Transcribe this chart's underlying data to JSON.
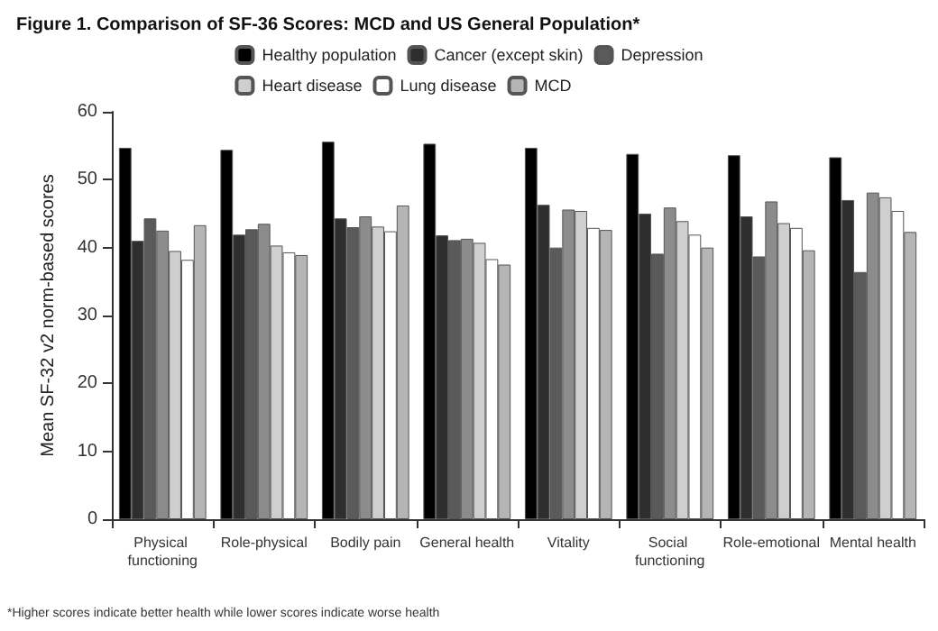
{
  "chart_data": {
    "type": "bar",
    "title": "Figure 1. Comparison of SF-36 Scores: MCD and US General Population*",
    "ylabel": "Mean SF-32 v2 norm-based scores",
    "annotations": [
      "*Higher scores indicate better health while lower scores indicate worse health"
    ],
    "categories": [
      "Physical functioning",
      "Role-physical",
      "Bodily pain",
      "General health",
      "Vitality",
      "Social functioning",
      "Role-emotional",
      "Mental health"
    ],
    "series": [
      {
        "name": "Healthy population",
        "color": "#000000",
        "values": [
          54.7,
          54.4,
          55.6,
          55.3,
          54.7,
          53.8,
          53.6,
          53.3
        ]
      },
      {
        "name": "Cancer (except skin)",
        "color": "#2e2e2e",
        "values": [
          41.0,
          41.9,
          44.3,
          41.8,
          46.3,
          45.0,
          44.6,
          47.0
        ]
      },
      {
        "name": "Depression",
        "color": "#5a5a5a",
        "values": [
          44.3,
          42.7,
          43.0,
          41.1,
          40.0,
          39.1,
          38.7,
          36.4
        ]
      },
      {
        "color": "#8c8c8c",
        "values": [
          42.5,
          43.5,
          44.6,
          41.3,
          45.6,
          45.9,
          46.8,
          48.1
        ]
      },
      {
        "name": "Heart disease",
        "color": "#cfcfcf",
        "values": [
          39.5,
          40.3,
          43.1,
          40.7,
          45.4,
          43.9,
          43.6,
          47.4
        ]
      },
      {
        "name": "Lung disease",
        "color": "#ffffff",
        "values": [
          38.2,
          39.3,
          42.4,
          38.3,
          42.9,
          41.9,
          42.9,
          45.4
        ]
      },
      {
        "name": "MCD",
        "color": "#b5b5b5",
        "values": [
          43.3,
          38.9,
          46.2,
          37.5,
          42.6,
          40.0,
          39.6,
          42.3
        ]
      }
    ],
    "ylim": [
      0,
      60
    ],
    "yticks": [
      0,
      10,
      20,
      30,
      40,
      50,
      60
    ],
    "grid": false,
    "legend": "top"
  }
}
